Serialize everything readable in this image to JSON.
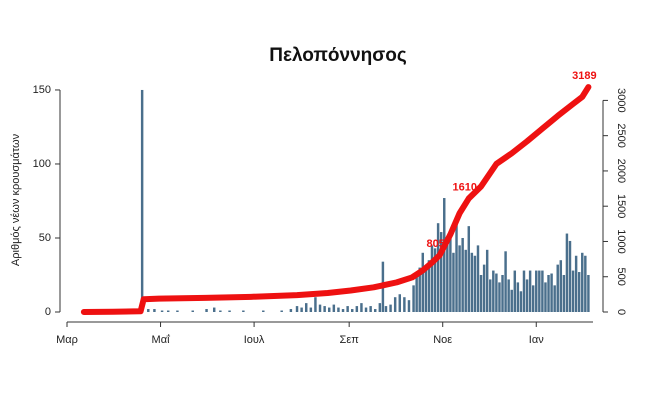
{
  "chart_data": {
    "type": "bar",
    "title": "Πελοπόννησος",
    "y_label": "Αριθμός νέων κρουσμάτων",
    "xlim": [
      0,
      343
    ],
    "xticks": [
      {
        "value": 0,
        "label": "Μαρ"
      },
      {
        "value": 61,
        "label": "Μαΐ"
      },
      {
        "value": 122,
        "label": "Ιουλ"
      },
      {
        "value": 184,
        "label": "Σεπ"
      },
      {
        "value": 245,
        "label": "Νοε"
      },
      {
        "value": 306,
        "label": "Ιαν"
      }
    ],
    "ylim": [
      0,
      152
    ],
    "yticks": [
      0,
      50,
      100,
      150
    ],
    "y2lim": [
      0,
      3190
    ],
    "y2ticks": [
      0,
      500,
      1000,
      1500,
      2000,
      2500,
      3000
    ],
    "series": [
      {
        "type": "bar",
        "color": "#4a6f8c",
        "x": [
          20,
          30,
          38,
          44,
          49,
          53,
          57,
          62,
          66,
          72,
          82,
          91,
          96,
          100,
          106,
          115,
          128,
          140,
          146,
          150,
          153,
          156,
          159,
          162,
          165,
          168,
          171,
          174,
          177,
          180,
          183,
          186,
          189,
          192,
          195,
          198,
          201,
          204,
          206,
          208,
          211,
          214,
          217,
          220,
          223,
          226,
          228,
          230,
          232,
          234,
          236,
          238,
          240,
          242,
          244,
          246,
          248,
          250,
          252,
          254,
          256,
          258,
          260,
          262,
          264,
          266,
          268,
          270,
          272,
          274,
          276,
          278,
          280,
          282,
          284,
          286,
          288,
          290,
          292,
          294,
          296,
          298,
          300,
          302,
          304,
          306,
          308,
          310,
          312,
          314,
          316,
          318,
          320,
          322,
          324,
          326,
          328,
          330,
          332,
          334,
          336,
          338,
          340
        ],
        "values": [
          1,
          1,
          2,
          1,
          150,
          2,
          2,
          1,
          1,
          1,
          1,
          2,
          3,
          1,
          1,
          1,
          1,
          1,
          2,
          4,
          3,
          6,
          3,
          10,
          5,
          4,
          3,
          5,
          3,
          2,
          4,
          2,
          4,
          6,
          3,
          4,
          2,
          6,
          34,
          4,
          5,
          10,
          12,
          10,
          8,
          18,
          25,
          30,
          40,
          28,
          35,
          45,
          43,
          60,
          54,
          77,
          50,
          55,
          40,
          60,
          45,
          50,
          42,
          58,
          40,
          38,
          45,
          25,
          32,
          42,
          22,
          28,
          26,
          20,
          25,
          41,
          22,
          15,
          28,
          20,
          14,
          28,
          22,
          28,
          18,
          28,
          28,
          28,
          20,
          25,
          26,
          18,
          32,
          35,
          25,
          53,
          48,
          28,
          38,
          27,
          40,
          38,
          25
        ]
      },
      {
        "type": "line",
        "axis": "y2",
        "color": "#ee1111",
        "x": [
          11,
          30,
          48,
          50,
          60,
          90,
          120,
          150,
          170,
          185,
          200,
          215,
          225,
          232,
          238,
          243,
          250,
          256,
          262,
          270,
          280,
          290,
          300,
          310,
          320,
          330,
          336,
          340
        ],
        "values": [
          0,
          3,
          10,
          180,
          190,
          200,
          215,
          240,
          270,
          305,
          350,
          420,
          490,
          590,
          700,
          805,
          1100,
          1400,
          1610,
          1780,
          2100,
          2250,
          2420,
          2600,
          2780,
          2950,
          3050,
          3189
        ],
        "value_labels": [
          null,
          null,
          null,
          null,
          null,
          null,
          null,
          null,
          null,
          null,
          null,
          null,
          null,
          null,
          null,
          "805",
          null,
          null,
          "1610",
          null,
          null,
          null,
          null,
          null,
          null,
          null,
          null,
          "3189"
        ]
      }
    ]
  }
}
